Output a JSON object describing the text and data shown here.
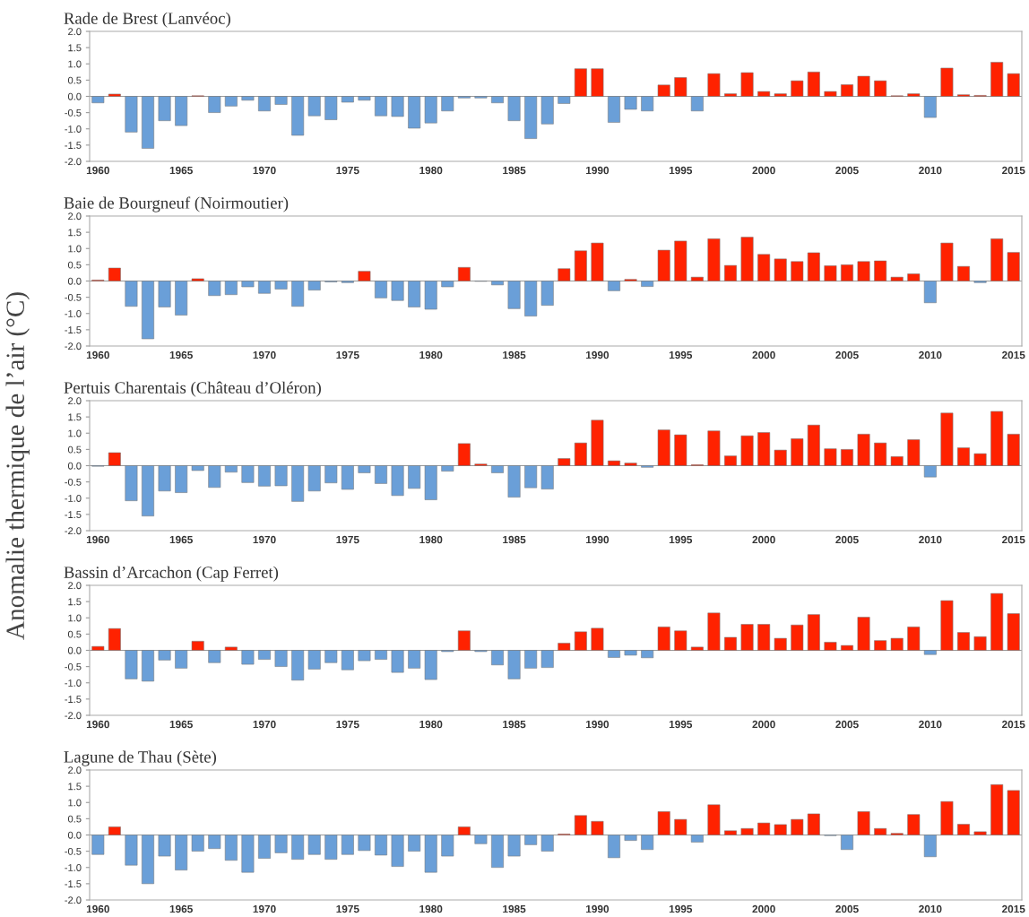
{
  "chart_data": [
    {
      "type": "bar",
      "title": "Rade de Brest (Lanvéoc)",
      "categories": [
        "1960",
        null,
        null,
        null,
        null,
        "1965",
        null,
        null,
        null,
        null,
        "1970",
        null,
        null,
        null,
        null,
        "1975",
        null,
        null,
        null,
        null,
        "1980",
        null,
        null,
        null,
        null,
        "1985",
        null,
        null,
        null,
        null,
        "1990",
        null,
        null,
        null,
        null,
        "1995",
        null,
        null,
        null,
        null,
        "2000",
        null,
        null,
        null,
        null,
        "2005",
        null,
        null,
        null,
        null,
        "2010",
        null,
        null,
        null,
        null,
        "2015"
      ],
      "values": [
        -0.2,
        0.07,
        -1.1,
        -1.6,
        -0.75,
        -0.9,
        0.02,
        -0.5,
        -0.3,
        -0.12,
        -0.45,
        -0.25,
        -1.2,
        -0.6,
        -0.72,
        -0.18,
        -0.12,
        -0.6,
        -0.62,
        -0.98,
        -0.82,
        -0.45,
        -0.05,
        -0.05,
        -0.2,
        -0.75,
        -1.3,
        -0.85,
        -0.22,
        0.85,
        0.85,
        -0.8,
        -0.4,
        -0.45,
        0.35,
        0.58,
        -0.45,
        0.7,
        0.08,
        0.73,
        0.15,
        0.08,
        0.48,
        0.75,
        0.15,
        0.36,
        0.62,
        0.48,
        0.02,
        0.08,
        -0.65,
        0.87,
        0.05,
        0.03,
        1.05,
        0.7
      ],
      "colors": [
        "#6a9fd8",
        "#ff2200",
        "#6a9fd8",
        "#6a9fd8",
        "#6a9fd8",
        "#6a9fd8",
        "#ff2200",
        "#6a9fd8",
        "#6a9fd8",
        "#6a9fd8",
        "#6a9fd8",
        "#6a9fd8",
        "#6a9fd8",
        "#6a9fd8",
        "#6a9fd8",
        "#6a9fd8",
        "#6a9fd8",
        "#6a9fd8",
        "#6a9fd8",
        "#6a9fd8",
        "#6a9fd8",
        "#6a9fd8",
        "#6a9fd8",
        "#6a9fd8",
        "#6a9fd8",
        "#6a9fd8",
        "#6a9fd8",
        "#6a9fd8",
        "#6a9fd8",
        "#ff2200",
        "#ff2200",
        "#6a9fd8",
        "#6a9fd8",
        "#6a9fd8",
        "#ff2200",
        "#ff2200",
        "#6a9fd8",
        "#ff2200",
        "#ff2200",
        "#ff2200",
        "#ff2200",
        "#ff2200",
        "#ff2200",
        "#ff2200",
        "#ff2200",
        "#ff2200",
        "#ff2200",
        "#ff2200",
        "#ff2200",
        "#ff2200",
        "#6a9fd8",
        "#ff2200",
        "#ff2200",
        "#ff2200",
        "#ff2200",
        "#ff2200"
      ],
      "ylim": [
        -2,
        2
      ],
      "yticks": [
        {
          "value": -2,
          "label": "-2.0"
        },
        {
          "value": -1.5,
          "label": "-1.5"
        },
        {
          "value": -1,
          "label": "-1.0"
        },
        {
          "value": -0.5,
          "label": "-0.5"
        },
        {
          "value": 0,
          "label": "0.0"
        },
        {
          "value": 0.5,
          "label": "0.5"
        },
        {
          "value": 1,
          "label": "1.0"
        },
        {
          "value": 1.5,
          "label": "1.5"
        },
        {
          "value": 2,
          "label": "2.0"
        }
      ]
    },
    {
      "type": "bar",
      "title": "Baie de Bourgneuf (Noirmoutier)",
      "categories": [
        "1960",
        null,
        null,
        null,
        null,
        "1965",
        null,
        null,
        null,
        null,
        "1970",
        null,
        null,
        null,
        null,
        "1975",
        null,
        null,
        null,
        null,
        "1980",
        null,
        null,
        null,
        null,
        "1985",
        null,
        null,
        null,
        null,
        "1990",
        null,
        null,
        null,
        null,
        "1995",
        null,
        null,
        null,
        null,
        "2000",
        null,
        null,
        null,
        null,
        "2005",
        null,
        null,
        null,
        null,
        "2010",
        null,
        null,
        null,
        null,
        "2015"
      ],
      "values": [
        0.03,
        0.4,
        -0.78,
        -1.78,
        -0.8,
        -1.05,
        0.07,
        -0.45,
        -0.42,
        -0.18,
        -0.38,
        -0.25,
        -0.78,
        -0.28,
        -0.03,
        -0.05,
        0.3,
        -0.52,
        -0.6,
        -0.8,
        -0.87,
        -0.18,
        0.42,
        -0.01,
        -0.12,
        -0.85,
        -1.08,
        -0.75,
        0.38,
        0.93,
        1.17,
        -0.3,
        0.05,
        -0.17,
        0.95,
        1.23,
        0.12,
        1.3,
        0.48,
        1.35,
        0.82,
        0.68,
        0.6,
        0.87,
        0.47,
        0.5,
        0.6,
        0.62,
        0.12,
        0.22,
        -0.67,
        1.17,
        0.45,
        -0.05,
        1.3,
        0.88
      ],
      "colors": [
        "#ff2200",
        "#ff2200",
        "#6a9fd8",
        "#6a9fd8",
        "#6a9fd8",
        "#6a9fd8",
        "#ff2200",
        "#6a9fd8",
        "#6a9fd8",
        "#6a9fd8",
        "#6a9fd8",
        "#6a9fd8",
        "#6a9fd8",
        "#6a9fd8",
        "#6a9fd8",
        "#6a9fd8",
        "#ff2200",
        "#6a9fd8",
        "#6a9fd8",
        "#6a9fd8",
        "#6a9fd8",
        "#6a9fd8",
        "#ff2200",
        "#6a9fd8",
        "#6a9fd8",
        "#6a9fd8",
        "#6a9fd8",
        "#6a9fd8",
        "#ff2200",
        "#ff2200",
        "#ff2200",
        "#6a9fd8",
        "#ff2200",
        "#6a9fd8",
        "#ff2200",
        "#ff2200",
        "#ff2200",
        "#ff2200",
        "#ff2200",
        "#ff2200",
        "#ff2200",
        "#ff2200",
        "#ff2200",
        "#ff2200",
        "#ff2200",
        "#ff2200",
        "#ff2200",
        "#ff2200",
        "#ff2200",
        "#ff2200",
        "#6a9fd8",
        "#ff2200",
        "#ff2200",
        "#6a9fd8",
        "#ff2200",
        "#ff2200"
      ],
      "ylim": [
        -2,
        2
      ],
      "yticks": [
        {
          "value": -2,
          "label": "-2.0"
        },
        {
          "value": -1.5,
          "label": "-1.5"
        },
        {
          "value": -1,
          "label": "-1.0"
        },
        {
          "value": -0.5,
          "label": "-0.5"
        },
        {
          "value": 0,
          "label": "0.0"
        },
        {
          "value": 0.5,
          "label": "0.5"
        },
        {
          "value": 1,
          "label": "1.0"
        },
        {
          "value": 1.5,
          "label": "1.5"
        },
        {
          "value": 2,
          "label": "2.0"
        }
      ]
    },
    {
      "type": "bar",
      "title": "Pertuis Charentais (Château d’Oléron)",
      "ylabel": "Anomalie thermique de l’air (°C)",
      "categories": [
        "1960",
        null,
        null,
        null,
        null,
        "1965",
        null,
        null,
        null,
        null,
        "1970",
        null,
        null,
        null,
        null,
        "1975",
        null,
        null,
        null,
        null,
        "1980",
        null,
        null,
        null,
        null,
        "1985",
        null,
        null,
        null,
        null,
        "1990",
        null,
        null,
        null,
        null,
        "1995",
        null,
        null,
        null,
        null,
        "2000",
        null,
        null,
        null,
        null,
        "2005",
        null,
        null,
        null,
        null,
        "2010",
        null,
        null,
        null,
        null,
        "2015"
      ],
      "values": [
        -0.02,
        0.4,
        -1.08,
        -1.55,
        -0.78,
        -0.83,
        -0.15,
        -0.67,
        -0.2,
        -0.52,
        -0.63,
        -0.62,
        -1.1,
        -0.78,
        -0.53,
        -0.73,
        -0.22,
        -0.55,
        -0.92,
        -0.7,
        -1.05,
        -0.17,
        0.68,
        0.05,
        -0.22,
        -0.97,
        -0.68,
        -0.72,
        0.22,
        0.7,
        1.4,
        0.15,
        0.08,
        -0.05,
        1.1,
        0.95,
        0.03,
        1.07,
        0.3,
        0.92,
        1.02,
        0.48,
        0.83,
        1.25,
        0.52,
        0.5,
        0.97,
        0.7,
        0.28,
        0.8,
        -0.35,
        1.62,
        0.55,
        0.37,
        1.67,
        0.97
      ],
      "colors": [
        "#6a9fd8",
        "#ff2200",
        "#6a9fd8",
        "#6a9fd8",
        "#6a9fd8",
        "#6a9fd8",
        "#6a9fd8",
        "#6a9fd8",
        "#6a9fd8",
        "#6a9fd8",
        "#6a9fd8",
        "#6a9fd8",
        "#6a9fd8",
        "#6a9fd8",
        "#6a9fd8",
        "#6a9fd8",
        "#6a9fd8",
        "#6a9fd8",
        "#6a9fd8",
        "#6a9fd8",
        "#6a9fd8",
        "#6a9fd8",
        "#ff2200",
        "#ff2200",
        "#6a9fd8",
        "#6a9fd8",
        "#6a9fd8",
        "#6a9fd8",
        "#ff2200",
        "#ff2200",
        "#ff2200",
        "#ff2200",
        "#ff2200",
        "#6a9fd8",
        "#ff2200",
        "#ff2200",
        "#ff2200",
        "#ff2200",
        "#ff2200",
        "#ff2200",
        "#ff2200",
        "#ff2200",
        "#ff2200",
        "#ff2200",
        "#ff2200",
        "#ff2200",
        "#ff2200",
        "#ff2200",
        "#ff2200",
        "#ff2200",
        "#6a9fd8",
        "#ff2200",
        "#ff2200",
        "#ff2200",
        "#ff2200",
        "#ff2200"
      ],
      "ylim": [
        -2,
        2
      ],
      "yticks": [
        {
          "value": -2,
          "label": "-2.0"
        },
        {
          "value": -1.5,
          "label": "-1.5"
        },
        {
          "value": -1,
          "label": "-1.0"
        },
        {
          "value": -0.5,
          "label": "-0.5"
        },
        {
          "value": 0,
          "label": "0.0"
        },
        {
          "value": 0.5,
          "label": "0.5"
        },
        {
          "value": 1,
          "label": "1.0"
        },
        {
          "value": 1.5,
          "label": "1.5"
        },
        {
          "value": 2,
          "label": "2.0"
        }
      ]
    },
    {
      "type": "bar",
      "title": "Bassin d’Arcachon (Cap Ferret)",
      "categories": [
        "1960",
        null,
        null,
        null,
        null,
        "1965",
        null,
        null,
        null,
        null,
        "1970",
        null,
        null,
        null,
        null,
        "1975",
        null,
        null,
        null,
        null,
        "1980",
        null,
        null,
        null,
        null,
        "1985",
        null,
        null,
        null,
        null,
        "1990",
        null,
        null,
        null,
        null,
        "1995",
        null,
        null,
        null,
        null,
        "2000",
        null,
        null,
        null,
        null,
        "2005",
        null,
        null,
        null,
        null,
        "2010",
        null,
        null,
        null,
        null,
        "2015"
      ],
      "values": [
        0.12,
        0.67,
        -0.88,
        -0.95,
        -0.3,
        -0.55,
        0.28,
        -0.38,
        0.1,
        -0.43,
        -0.28,
        -0.5,
        -0.92,
        -0.58,
        -0.38,
        -0.6,
        -0.32,
        -0.28,
        -0.68,
        -0.55,
        -0.9,
        -0.04,
        0.6,
        -0.04,
        -0.45,
        -0.88,
        -0.55,
        -0.53,
        0.22,
        0.57,
        0.68,
        -0.22,
        -0.15,
        -0.23,
        0.72,
        0.6,
        0.1,
        1.15,
        0.4,
        0.8,
        0.8,
        0.37,
        0.78,
        1.1,
        0.25,
        0.15,
        1.02,
        0.3,
        0.37,
        0.72,
        -0.13,
        1.53,
        0.55,
        0.42,
        1.75,
        1.13
      ],
      "colors": [
        "#ff2200",
        "#ff2200",
        "#6a9fd8",
        "#6a9fd8",
        "#6a9fd8",
        "#6a9fd8",
        "#ff2200",
        "#6a9fd8",
        "#ff2200",
        "#6a9fd8",
        "#6a9fd8",
        "#6a9fd8",
        "#6a9fd8",
        "#6a9fd8",
        "#6a9fd8",
        "#6a9fd8",
        "#6a9fd8",
        "#6a9fd8",
        "#6a9fd8",
        "#6a9fd8",
        "#6a9fd8",
        "#6a9fd8",
        "#ff2200",
        "#6a9fd8",
        "#6a9fd8",
        "#6a9fd8",
        "#6a9fd8",
        "#6a9fd8",
        "#ff2200",
        "#ff2200",
        "#ff2200",
        "#6a9fd8",
        "#6a9fd8",
        "#6a9fd8",
        "#ff2200",
        "#ff2200",
        "#ff2200",
        "#ff2200",
        "#ff2200",
        "#ff2200",
        "#ff2200",
        "#ff2200",
        "#ff2200",
        "#ff2200",
        "#ff2200",
        "#ff2200",
        "#ff2200",
        "#ff2200",
        "#ff2200",
        "#ff2200",
        "#6a9fd8",
        "#ff2200",
        "#ff2200",
        "#ff2200",
        "#ff2200",
        "#ff2200"
      ],
      "ylim": [
        -2,
        2
      ],
      "yticks": [
        {
          "value": -2,
          "label": "-2.0"
        },
        {
          "value": -1.5,
          "label": "-1.5"
        },
        {
          "value": -1,
          "label": "-1.0"
        },
        {
          "value": -0.5,
          "label": "-0.5"
        },
        {
          "value": 0,
          "label": "0.0"
        },
        {
          "value": 0.5,
          "label": "0.5"
        },
        {
          "value": 1,
          "label": "1.0"
        },
        {
          "value": 1.5,
          "label": "1.5"
        },
        {
          "value": 2,
          "label": "2.0"
        }
      ]
    },
    {
      "type": "bar",
      "title": "Lagune de Thau (Sète)",
      "categories": [
        "1960",
        null,
        null,
        null,
        null,
        "1965",
        null,
        null,
        null,
        null,
        "1970",
        null,
        null,
        null,
        null,
        "1975",
        null,
        null,
        null,
        null,
        "1980",
        null,
        null,
        null,
        null,
        "1985",
        null,
        null,
        null,
        null,
        "1990",
        null,
        null,
        null,
        null,
        "1995",
        null,
        null,
        null,
        null,
        "2000",
        null,
        null,
        null,
        null,
        "2005",
        null,
        null,
        null,
        null,
        "2010",
        null,
        null,
        null,
        null,
        "2015"
      ],
      "values": [
        -0.6,
        0.25,
        -0.93,
        -1.5,
        -0.65,
        -1.08,
        -0.5,
        -0.42,
        -0.78,
        -1.15,
        -0.72,
        -0.55,
        -0.75,
        -0.6,
        -0.75,
        -0.6,
        -0.48,
        -0.62,
        -0.97,
        -0.5,
        -1.15,
        -0.65,
        0.25,
        -0.27,
        -1.0,
        -0.65,
        -0.3,
        -0.5,
        0.03,
        0.6,
        0.42,
        -0.7,
        -0.17,
        -0.45,
        0.72,
        0.48,
        -0.22,
        0.93,
        0.13,
        0.2,
        0.37,
        0.32,
        0.48,
        0.65,
        -0.02,
        -0.45,
        0.72,
        0.2,
        0.05,
        0.63,
        -0.67,
        1.03,
        0.33,
        0.1,
        1.55,
        1.37
      ],
      "colors": [
        "#6a9fd8",
        "#ff2200",
        "#6a9fd8",
        "#6a9fd8",
        "#6a9fd8",
        "#6a9fd8",
        "#6a9fd8",
        "#6a9fd8",
        "#6a9fd8",
        "#6a9fd8",
        "#6a9fd8",
        "#6a9fd8",
        "#6a9fd8",
        "#6a9fd8",
        "#6a9fd8",
        "#6a9fd8",
        "#6a9fd8",
        "#6a9fd8",
        "#6a9fd8",
        "#6a9fd8",
        "#6a9fd8",
        "#6a9fd8",
        "#ff2200",
        "#6a9fd8",
        "#6a9fd8",
        "#6a9fd8",
        "#6a9fd8",
        "#6a9fd8",
        "#ff2200",
        "#ff2200",
        "#ff2200",
        "#6a9fd8",
        "#6a9fd8",
        "#6a9fd8",
        "#ff2200",
        "#ff2200",
        "#6a9fd8",
        "#ff2200",
        "#ff2200",
        "#ff2200",
        "#ff2200",
        "#ff2200",
        "#ff2200",
        "#ff2200",
        "#6a9fd8",
        "#6a9fd8",
        "#ff2200",
        "#ff2200",
        "#ff2200",
        "#ff2200",
        "#6a9fd8",
        "#ff2200",
        "#ff2200",
        "#ff2200",
        "#ff2200",
        "#ff2200"
      ],
      "ylim": [
        -2,
        2
      ],
      "yticks": [
        {
          "value": -2,
          "label": "-2.0"
        },
        {
          "value": -1.5,
          "label": "-1.5"
        },
        {
          "value": -1,
          "label": "-1.0"
        },
        {
          "value": -0.5,
          "label": "-0.5"
        },
        {
          "value": 0,
          "label": "0.0"
        },
        {
          "value": 0.5,
          "label": "0.5"
        },
        {
          "value": 1,
          "label": "1.0"
        },
        {
          "value": 1.5,
          "label": "1.5"
        },
        {
          "value": 2,
          "label": "2.0"
        }
      ]
    }
  ]
}
